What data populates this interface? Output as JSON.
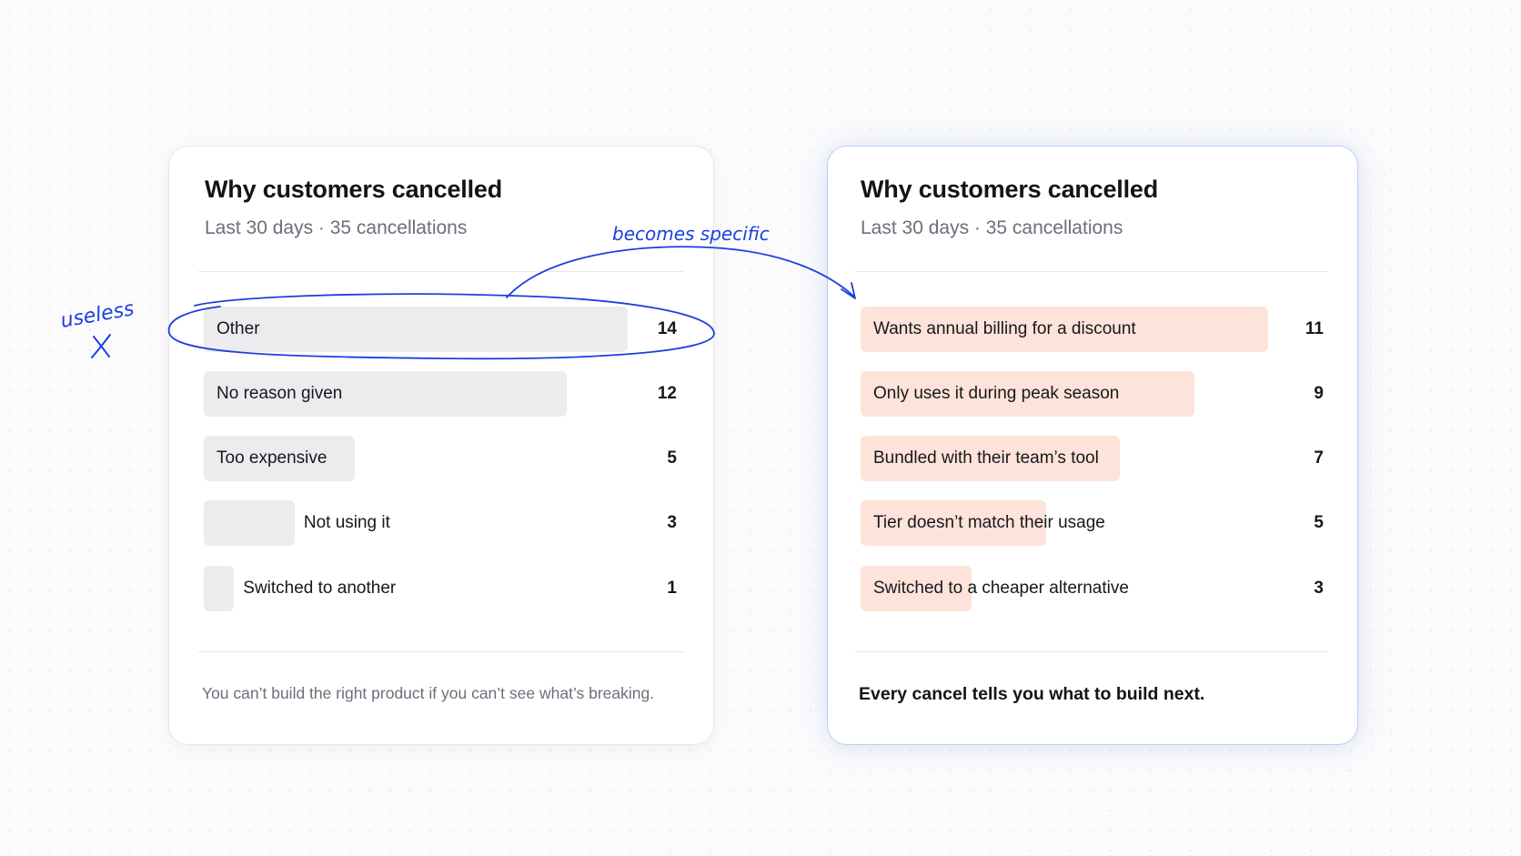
{
  "colors": {
    "background": "#fbfbfc",
    "left_bar": "#ececef",
    "right_bar": "#fde3d9",
    "right_card_border": "#b9cdfa",
    "annotation_ink": "#1c3fe0"
  },
  "annotations": {
    "useless": "useless",
    "becomes_specific": "becomes specific",
    "cross_icon": "x-mark-icon",
    "arrow_icon": "curved-arrow-icon"
  },
  "chart_data": [
    {
      "type": "bar",
      "orientation": "horizontal",
      "title": "Why customers cancelled",
      "subtitle": "Last 30 days · 35 cancellations",
      "categories": [
        "Other",
        "No reason given",
        "Too expensive",
        "Not using it",
        "Switched to another"
      ],
      "values": [
        14,
        12,
        5,
        3,
        1
      ],
      "xlim": [
        0,
        14
      ],
      "footer": "You can’t build the right product if you can’t see what’s breaking."
    },
    {
      "type": "bar",
      "orientation": "horizontal",
      "title": "Why customers cancelled",
      "subtitle": "Last 30 days · 35 cancellations",
      "categories": [
        "Wants annual billing for a discount",
        "Only uses it during peak season",
        "Bundled with their team’s tool",
        "Tier doesn’t match their usage",
        "Switched to a cheaper alternative"
      ],
      "values": [
        11,
        9,
        7,
        5,
        3
      ],
      "xlim": [
        0,
        11
      ],
      "footer": "Every cancel tells you what to build next."
    }
  ]
}
